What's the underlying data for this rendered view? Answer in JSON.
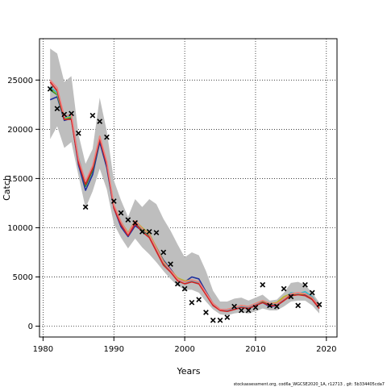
{
  "chart_data": {
    "type": "line",
    "xlabel": "Years",
    "ylabel": "Catch",
    "xlim": [
      1979.5,
      2021.5
    ],
    "ylim": [
      -1100,
      29200
    ],
    "xticks": [
      1980,
      1990,
      2000,
      2010,
      2020
    ],
    "yticks": [
      0,
      5000,
      10000,
      15000,
      20000,
      25000
    ],
    "xtick_labels": [
      "1980",
      "1990",
      "2000",
      "2010",
      "2020"
    ],
    "ytick_labels": [
      "0",
      "5000",
      "10000",
      "15000",
      "20000",
      "25000"
    ],
    "grid": true,
    "footnote": "stockassessment.org, cod6a_WGCSE2020_1A, r12713 , git: 5b334405cda7",
    "colors": {
      "band": "#bebebe",
      "grid": "#000000",
      "observed": "#000000",
      "series": [
        "#1f2f9e",
        "#2a8a3a",
        "#b8b820",
        "#35b8c8",
        "#d22020",
        "#f08080"
      ]
    },
    "band": {
      "x": [
        1981,
        1982,
        1983,
        1984,
        1985,
        1986,
        1987,
        1988,
        1989,
        1990,
        1991,
        1992,
        1993,
        1994,
        1995,
        1996,
        1997,
        1998,
        1999,
        2000,
        2001,
        2002,
        2003,
        2004,
        2005,
        2006,
        2007,
        2008,
        2009,
        2010,
        2011,
        2012,
        2013,
        2014,
        2015,
        2016,
        2017,
        2018,
        2019
      ],
      "lower": [
        19000,
        20300,
        18100,
        18700,
        15300,
        12000,
        13700,
        16000,
        13900,
        10400,
        9000,
        7900,
        8900,
        8000,
        7300,
        6500,
        5600,
        4800,
        4100,
        3700,
        3700,
        3400,
        2500,
        1700,
        1200,
        1100,
        1300,
        1400,
        1300,
        1500,
        1800,
        1600,
        1600,
        2000,
        2500,
        2600,
        2600,
        2100,
        1300
      ],
      "upper": [
        28200,
        27700,
        24800,
        25400,
        19500,
        16500,
        18000,
        23200,
        19800,
        14800,
        12800,
        11100,
        12900,
        12100,
        12900,
        12400,
        10900,
        9700,
        8300,
        7000,
        7500,
        7200,
        5600,
        3600,
        2500,
        2500,
        2800,
        2900,
        2600,
        2900,
        3200,
        2600,
        2700,
        3400,
        4400,
        4500,
        4200,
        3400,
        2400
      ]
    },
    "x": [
      1981,
      1982,
      1983,
      1984,
      1985,
      1986,
      1987,
      1988,
      1989,
      1990,
      1991,
      1992,
      1993,
      1994,
      1995,
      1996,
      1997,
      1998,
      1999,
      2000,
      2001,
      2002,
      2003,
      2004,
      2005,
      2006,
      2007,
      2008,
      2009,
      2010,
      2011,
      2012,
      2013,
      2014,
      2015,
      2016,
      2017,
      2018,
      2019
    ],
    "series": [
      {
        "values": [
          23000,
          23300,
          20900,
          21100,
          16400,
          13800,
          15400,
          18700,
          16100,
          12000,
          10100,
          9100,
          10200,
          9700,
          9300,
          8000,
          6700,
          5800,
          4800,
          4500,
          5000,
          4800,
          3500,
          2300,
          1700,
          1600,
          1800,
          2000,
          1800,
          2100,
          2400,
          2000,
          2100,
          2600,
          3200,
          3300,
          3200,
          2700,
          1800
        ]
      },
      {
        "values": [
          24000,
          23500,
          21000,
          21200,
          16800,
          14200,
          15800,
          19000,
          16400,
          12100,
          10400,
          9300,
          10500,
          9800,
          9200,
          7800,
          6400,
          5600,
          4800,
          4500,
          4600,
          4400,
          3300,
          2200,
          1600,
          1600,
          1800,
          2000,
          1900,
          2200,
          2500,
          2200,
          2300,
          2800,
          3100,
          3200,
          3300,
          2800,
          1900
        ]
      },
      {
        "values": [
          24200,
          23600,
          21100,
          21300,
          17000,
          14500,
          16100,
          19300,
          16600,
          12300,
          10600,
          9500,
          10700,
          10000,
          9400,
          8000,
          6600,
          5700,
          4900,
          4600,
          4700,
          4500,
          3400,
          2300,
          1700,
          1700,
          1900,
          2100,
          2000,
          2300,
          2600,
          2300,
          2400,
          3000,
          3300,
          3300,
          3300,
          2900,
          2000
        ]
      },
      {
        "values": [
          24300,
          23700,
          21200,
          21400,
          17100,
          14600,
          16100,
          19200,
          16500,
          12200,
          10500,
          9400,
          10600,
          9900,
          9300,
          7900,
          6500,
          5600,
          4800,
          4500,
          4600,
          4400,
          3300,
          2200,
          1600,
          1600,
          1800,
          2000,
          1900,
          2200,
          2400,
          2100,
          2200,
          2700,
          3400,
          3300,
          3500,
          3000,
          2000
        ]
      },
      {
        "values": [
          24800,
          23900,
          21000,
          21000,
          16600,
          14400,
          16000,
          19000,
          16400,
          12000,
          10300,
          9200,
          10400,
          9600,
          9000,
          7600,
          6200,
          5500,
          4600,
          4300,
          4500,
          4300,
          3200,
          2100,
          1600,
          1500,
          1700,
          1900,
          1800,
          2100,
          2400,
          2100,
          2100,
          2600,
          3100,
          3200,
          3100,
          2700,
          1800
        ]
      },
      {
        "values": [
          25000,
          24200,
          21300,
          21500,
          17000,
          14700,
          16300,
          19300,
          16700,
          12300,
          10600,
          9400,
          10700,
          9900,
          9300,
          7900,
          6500,
          5700,
          4800,
          4500,
          4700,
          4500,
          3400,
          2300,
          1700,
          1700,
          1900,
          2100,
          2000,
          2300,
          2600,
          2300,
          2300,
          2800,
          3300,
          3400,
          3300,
          2900,
          2000
        ]
      }
    ],
    "observed": {
      "x": [
        1981,
        1982,
        1983,
        1984,
        1985,
        1986,
        1987,
        1988,
        1989,
        1990,
        1991,
        1992,
        1993,
        1994,
        1995,
        1996,
        1997,
        1998,
        1999,
        2000,
        2001,
        2002,
        2003,
        2004,
        2005,
        2006,
        2007,
        2008,
        2009,
        2010,
        2011,
        2012,
        2013,
        2014,
        2015,
        2016,
        2017,
        2018,
        2019
      ],
      "y": [
        24100,
        22100,
        21500,
        21600,
        19600,
        12100,
        21400,
        20800,
        19200,
        12700,
        11500,
        10800,
        10500,
        9600,
        9600,
        9500,
        7500,
        6300,
        4300,
        3800,
        2400,
        2700,
        1400,
        600,
        600,
        900,
        2000,
        1600,
        1600,
        1900,
        4200,
        2100,
        2000,
        3800,
        3000,
        2100,
        4200,
        3400,
        2200
      ]
    }
  }
}
